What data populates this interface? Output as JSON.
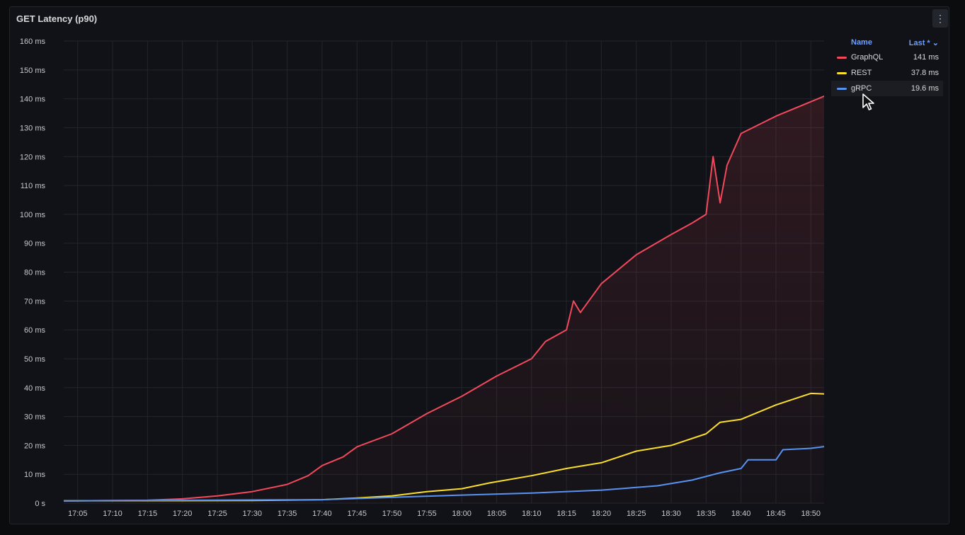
{
  "panel": {
    "title": "GET Latency (p90)",
    "menu_icon": "kebab-menu-icon"
  },
  "legend": {
    "name_header": "Name",
    "last_header": "Last *",
    "rows": [
      {
        "name": "GraphQL",
        "last": "141 ms",
        "color": "#f2495c"
      },
      {
        "name": "REST",
        "last": "37.8 ms",
        "color": "#fade2a"
      },
      {
        "name": "gRPC",
        "last": "19.6 ms",
        "color": "#5794f2"
      }
    ]
  },
  "chart_data": {
    "type": "line",
    "title": "GET Latency (p90)",
    "x_unit": "time",
    "x_ticks": [
      "17:05",
      "17:10",
      "17:15",
      "17:20",
      "17:25",
      "17:30",
      "17:35",
      "17:40",
      "17:45",
      "17:50",
      "17:55",
      "18:00",
      "18:05",
      "18:10",
      "18:15",
      "18:20",
      "18:25",
      "18:30",
      "18:35",
      "18:40",
      "18:45",
      "18:50"
    ],
    "y_ticks": [
      "0 s",
      "10 ms",
      "20 ms",
      "30 ms",
      "40 ms",
      "50 ms",
      "60 ms",
      "70 ms",
      "80 ms",
      "90 ms",
      "100 ms",
      "110 ms",
      "120 ms",
      "130 ms",
      "140 ms",
      "150 ms",
      "160 ms"
    ],
    "ylim": [
      0,
      160
    ],
    "xlim": [
      "17:03",
      "18:52"
    ],
    "grid": true,
    "legend_position": "right",
    "series": [
      {
        "name": "GraphQL",
        "color": "#f2495c",
        "fill": true,
        "x": [
          "17:03",
          "17:10",
          "17:15",
          "17:20",
          "17:25",
          "17:30",
          "17:35",
          "17:38",
          "17:40",
          "17:43",
          "17:45",
          "17:50",
          "17:55",
          "18:00",
          "18:05",
          "18:10",
          "18:12",
          "18:15",
          "18:16",
          "18:17",
          "18:20",
          "18:25",
          "18:30",
          "18:33",
          "18:35",
          "18:36",
          "18:37",
          "18:38",
          "18:40",
          "18:45",
          "18:50",
          "18:52"
        ],
        "values": [
          0.8,
          0.9,
          1.0,
          1.5,
          2.5,
          4.0,
          6.5,
          9.5,
          13,
          16,
          19.5,
          24,
          31,
          37,
          44,
          50,
          56,
          60,
          70,
          66,
          76,
          86,
          93,
          97,
          100,
          120,
          104,
          117,
          128,
          134,
          139,
          141
        ]
      },
      {
        "name": "REST",
        "color": "#fade2a",
        "fill": false,
        "x": [
          "17:03",
          "17:30",
          "17:40",
          "17:45",
          "17:50",
          "17:55",
          "18:00",
          "18:04",
          "18:10",
          "18:15",
          "18:20",
          "18:25",
          "18:30",
          "18:35",
          "18:37",
          "18:40",
          "18:45",
          "18:50",
          "18:52"
        ],
        "values": [
          0.8,
          0.9,
          1.2,
          1.8,
          2.5,
          4.0,
          5.0,
          7.0,
          9.5,
          12,
          14,
          18,
          20,
          24,
          28,
          29,
          34,
          38,
          37.8
        ]
      },
      {
        "name": "gRPC",
        "color": "#5794f2",
        "fill": false,
        "x": [
          "17:03",
          "17:40",
          "17:50",
          "18:00",
          "18:10",
          "18:20",
          "18:28",
          "18:33",
          "18:37",
          "18:40",
          "18:41",
          "18:45",
          "18:46",
          "18:50",
          "18:52"
        ],
        "values": [
          0.8,
          1.2,
          2.0,
          2.8,
          3.5,
          4.5,
          6.0,
          8.0,
          10.5,
          12,
          15,
          15,
          18.5,
          19,
          19.6
        ]
      }
    ]
  }
}
